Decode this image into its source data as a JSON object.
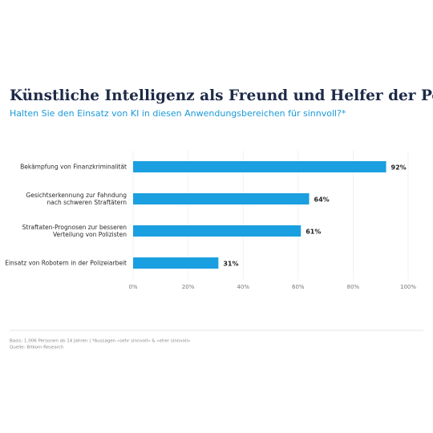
{
  "chart_data": {
    "type": "hbar",
    "title": "Künstliche Intelligenz als Freund und Helfer der Polizei",
    "subtitle": "Halten Sie den Einsatz von KI in diesen Anwendungsbereichen für sinnvoll?*",
    "categories": [
      "Bekämpfung von Finanzkriminalität",
      "Gesichtserkennung zur Fahndung\nnach schweren Straftätern",
      "Straftaten-Prognosen zur besseren\nVerteilung von Polizisten",
      "Einsatz von Robotern in der Polizeiarbeit"
    ],
    "values": [
      92,
      64,
      61,
      31
    ],
    "value_labels": [
      "92%",
      "64%",
      "61%",
      "31%"
    ],
    "color": "#1a9fe0",
    "xlim": [
      0,
      100
    ],
    "xticks": [
      {
        "value": 0,
        "label": "0%"
      },
      {
        "value": 20,
        "label": "20%"
      },
      {
        "value": 40,
        "label": "40%"
      },
      {
        "value": 60,
        "label": "60%"
      },
      {
        "value": 80,
        "label": "80%"
      },
      {
        "value": 100,
        "label": "100%"
      }
    ],
    "grid": true,
    "footnote": "Basis: 1.006 Personen ab 14 Jahren | *Aussagen »sehr sinnvoll« & »eher sinnvoll«",
    "source": "Quelle: Bitkom Research"
  }
}
